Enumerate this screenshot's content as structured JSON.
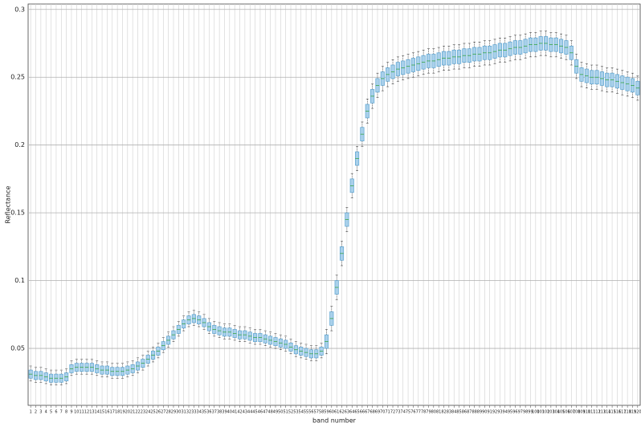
{
  "chart_data": {
    "type": "box",
    "y_label": "Reflectance",
    "x_label": "band number",
    "ylim": [
      0.008,
      0.304
    ],
    "yticks": [
      0.05,
      0.1,
      0.15,
      0.2,
      0.25,
      0.3
    ],
    "grid": true,
    "box_color": "#5fa6d3",
    "box_fill": "#a9d0ea",
    "median_color": "#2ca02c",
    "whisker_color": "#333333",
    "categories": [
      "1",
      "2",
      "3",
      "4",
      "5",
      "6",
      "7",
      "8",
      "9",
      "10",
      "11",
      "12",
      "13",
      "14",
      "15",
      "16",
      "17",
      "18",
      "19",
      "20",
      "21",
      "22",
      "23",
      "24",
      "25",
      "26",
      "27",
      "28",
      "29",
      "30",
      "31",
      "32",
      "33",
      "34",
      "35",
      "36",
      "37",
      "38",
      "39",
      "40",
      "41",
      "42",
      "43",
      "44",
      "45",
      "46",
      "47",
      "48",
      "49",
      "50",
      "51",
      "52",
      "53",
      "54",
      "55",
      "56",
      "57",
      "58",
      "59",
      "60",
      "61",
      "62",
      "63",
      "64",
      "65",
      "66",
      "67",
      "68",
      "69",
      "70",
      "71",
      "72",
      "73",
      "74",
      "75",
      "76",
      "77",
      "78",
      "79",
      "80",
      "81",
      "82",
      "83",
      "84",
      "85",
      "86",
      "87",
      "88",
      "89",
      "90",
      "91",
      "92",
      "93",
      "94",
      "95",
      "96",
      "97",
      "98",
      "99",
      "100",
      "101",
      "102",
      "103",
      "104",
      "105",
      "106",
      "107",
      "108",
      "109",
      "110",
      "111",
      "112",
      "113",
      "114",
      "115",
      "116",
      "117",
      "118",
      "119",
      "120"
    ],
    "median": [
      0.031,
      0.03,
      0.03,
      0.029,
      0.028,
      0.028,
      0.028,
      0.029,
      0.035,
      0.036,
      0.036,
      0.036,
      0.036,
      0.035,
      0.034,
      0.034,
      0.033,
      0.033,
      0.033,
      0.034,
      0.035,
      0.037,
      0.039,
      0.042,
      0.045,
      0.048,
      0.052,
      0.056,
      0.06,
      0.064,
      0.068,
      0.071,
      0.072,
      0.071,
      0.069,
      0.066,
      0.064,
      0.063,
      0.062,
      0.062,
      0.061,
      0.06,
      0.06,
      0.059,
      0.058,
      0.058,
      0.057,
      0.056,
      0.055,
      0.054,
      0.053,
      0.051,
      0.049,
      0.048,
      0.047,
      0.046,
      0.046,
      0.048,
      0.055,
      0.072,
      0.095,
      0.12,
      0.145,
      0.17,
      0.19,
      0.208,
      0.225,
      0.236,
      0.244,
      0.249,
      0.252,
      0.254,
      0.256,
      0.257,
      0.258,
      0.259,
      0.26,
      0.261,
      0.262,
      0.262,
      0.263,
      0.264,
      0.264,
      0.265,
      0.265,
      0.266,
      0.266,
      0.267,
      0.267,
      0.268,
      0.268,
      0.269,
      0.27,
      0.27,
      0.271,
      0.272,
      0.272,
      0.273,
      0.274,
      0.274,
      0.275,
      0.275,
      0.274,
      0.274,
      0.273,
      0.272,
      0.268,
      0.258,
      0.252,
      0.251,
      0.25,
      0.25,
      0.249,
      0.248,
      0.248,
      0.247,
      0.246,
      0.245,
      0.244,
      0.242
    ],
    "q1": [
      0.028,
      0.027,
      0.027,
      0.026,
      0.025,
      0.025,
      0.025,
      0.026,
      0.032,
      0.033,
      0.033,
      0.033,
      0.033,
      0.032,
      0.031,
      0.031,
      0.03,
      0.03,
      0.03,
      0.031,
      0.032,
      0.034,
      0.036,
      0.039,
      0.042,
      0.045,
      0.049,
      0.053,
      0.057,
      0.061,
      0.065,
      0.068,
      0.069,
      0.068,
      0.066,
      0.063,
      0.061,
      0.06,
      0.059,
      0.059,
      0.058,
      0.057,
      0.057,
      0.056,
      0.055,
      0.055,
      0.054,
      0.053,
      0.052,
      0.051,
      0.05,
      0.048,
      0.046,
      0.045,
      0.044,
      0.043,
      0.043,
      0.045,
      0.05,
      0.067,
      0.09,
      0.115,
      0.14,
      0.165,
      0.185,
      0.203,
      0.22,
      0.231,
      0.239,
      0.244,
      0.247,
      0.249,
      0.251,
      0.252,
      0.253,
      0.254,
      0.255,
      0.256,
      0.257,
      0.257,
      0.258,
      0.259,
      0.259,
      0.26,
      0.26,
      0.261,
      0.261,
      0.262,
      0.262,
      0.263,
      0.263,
      0.264,
      0.265,
      0.265,
      0.266,
      0.267,
      0.267,
      0.268,
      0.269,
      0.269,
      0.27,
      0.27,
      0.269,
      0.269,
      0.268,
      0.267,
      0.263,
      0.253,
      0.247,
      0.246,
      0.245,
      0.245,
      0.244,
      0.243,
      0.243,
      0.242,
      0.241,
      0.24,
      0.239,
      0.237
    ],
    "q3": [
      0.034,
      0.033,
      0.033,
      0.032,
      0.031,
      0.031,
      0.031,
      0.032,
      0.038,
      0.039,
      0.039,
      0.039,
      0.039,
      0.038,
      0.037,
      0.037,
      0.036,
      0.036,
      0.036,
      0.037,
      0.038,
      0.04,
      0.042,
      0.045,
      0.048,
      0.051,
      0.055,
      0.059,
      0.063,
      0.067,
      0.071,
      0.074,
      0.075,
      0.074,
      0.072,
      0.069,
      0.067,
      0.066,
      0.065,
      0.065,
      0.064,
      0.063,
      0.063,
      0.062,
      0.061,
      0.061,
      0.06,
      0.059,
      0.058,
      0.057,
      0.056,
      0.054,
      0.052,
      0.051,
      0.05,
      0.049,
      0.049,
      0.051,
      0.06,
      0.077,
      0.1,
      0.125,
      0.15,
      0.175,
      0.195,
      0.213,
      0.23,
      0.241,
      0.249,
      0.254,
      0.257,
      0.259,
      0.261,
      0.262,
      0.263,
      0.264,
      0.265,
      0.266,
      0.267,
      0.267,
      0.268,
      0.269,
      0.269,
      0.27,
      0.27,
      0.271,
      0.271,
      0.272,
      0.272,
      0.273,
      0.273,
      0.274,
      0.275,
      0.275,
      0.276,
      0.277,
      0.277,
      0.278,
      0.279,
      0.279,
      0.28,
      0.28,
      0.279,
      0.279,
      0.278,
      0.277,
      0.273,
      0.263,
      0.257,
      0.256,
      0.255,
      0.255,
      0.254,
      0.253,
      0.253,
      0.252,
      0.251,
      0.25,
      0.249,
      0.247
    ],
    "whislo": [
      0.026,
      0.025,
      0.025,
      0.024,
      0.023,
      0.023,
      0.023,
      0.024,
      0.03,
      0.031,
      0.031,
      0.031,
      0.031,
      0.03,
      0.029,
      0.029,
      0.028,
      0.028,
      0.028,
      0.029,
      0.03,
      0.032,
      0.034,
      0.037,
      0.04,
      0.043,
      0.047,
      0.051,
      0.055,
      0.059,
      0.063,
      0.066,
      0.067,
      0.066,
      0.064,
      0.061,
      0.059,
      0.058,
      0.057,
      0.057,
      0.056,
      0.055,
      0.055,
      0.054,
      0.053,
      0.053,
      0.052,
      0.051,
      0.05,
      0.049,
      0.048,
      0.046,
      0.044,
      0.043,
      0.042,
      0.041,
      0.041,
      0.043,
      0.046,
      0.063,
      0.086,
      0.111,
      0.136,
      0.161,
      0.181,
      0.199,
      0.216,
      0.227,
      0.235,
      0.24,
      0.243,
      0.245,
      0.247,
      0.248,
      0.249,
      0.25,
      0.251,
      0.252,
      0.253,
      0.253,
      0.254,
      0.255,
      0.255,
      0.256,
      0.256,
      0.257,
      0.257,
      0.258,
      0.258,
      0.259,
      0.259,
      0.26,
      0.261,
      0.261,
      0.262,
      0.263,
      0.263,
      0.264,
      0.265,
      0.265,
      0.266,
      0.266,
      0.265,
      0.265,
      0.264,
      0.263,
      0.259,
      0.249,
      0.243,
      0.242,
      0.241,
      0.241,
      0.24,
      0.239,
      0.239,
      0.238,
      0.237,
      0.236,
      0.235,
      0.233
    ],
    "whishi": [
      0.037,
      0.036,
      0.036,
      0.035,
      0.034,
      0.034,
      0.034,
      0.035,
      0.041,
      0.042,
      0.042,
      0.042,
      0.042,
      0.041,
      0.04,
      0.04,
      0.039,
      0.039,
      0.039,
      0.04,
      0.041,
      0.043,
      0.045,
      0.048,
      0.051,
      0.054,
      0.058,
      0.062,
      0.066,
      0.07,
      0.074,
      0.077,
      0.078,
      0.077,
      0.075,
      0.072,
      0.07,
      0.069,
      0.068,
      0.068,
      0.067,
      0.066,
      0.066,
      0.065,
      0.064,
      0.064,
      0.063,
      0.062,
      0.061,
      0.06,
      0.059,
      0.057,
      0.055,
      0.054,
      0.053,
      0.052,
      0.052,
      0.054,
      0.064,
      0.081,
      0.104,
      0.129,
      0.154,
      0.179,
      0.199,
      0.217,
      0.234,
      0.245,
      0.253,
      0.258,
      0.261,
      0.263,
      0.265,
      0.266,
      0.267,
      0.268,
      0.269,
      0.27,
      0.271,
      0.271,
      0.272,
      0.273,
      0.273,
      0.274,
      0.274,
      0.275,
      0.275,
      0.276,
      0.276,
      0.277,
      0.277,
      0.278,
      0.279,
      0.279,
      0.28,
      0.281,
      0.281,
      0.282,
      0.283,
      0.283,
      0.284,
      0.284,
      0.283,
      0.283,
      0.282,
      0.281,
      0.277,
      0.267,
      0.261,
      0.26,
      0.259,
      0.259,
      0.258,
      0.257,
      0.257,
      0.256,
      0.255,
      0.254,
      0.253,
      0.251
    ]
  }
}
